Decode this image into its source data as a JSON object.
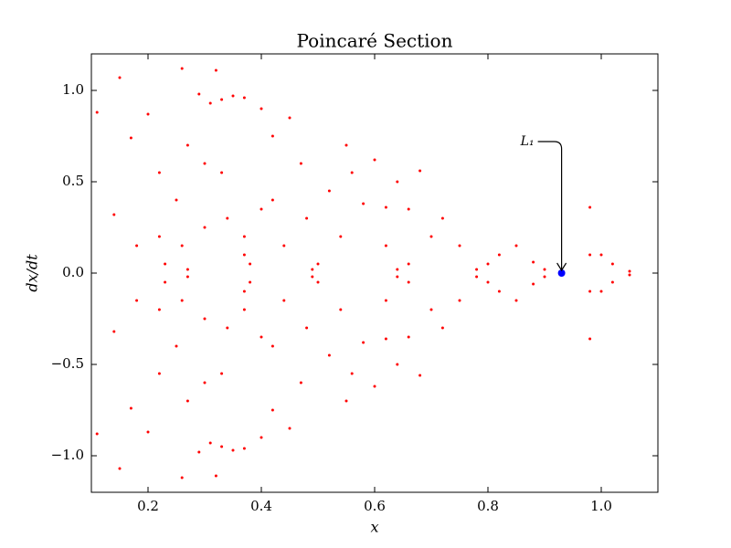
{
  "chart_data": {
    "type": "scatter",
    "title": "Poincaré Section",
    "xlabel": "x",
    "ylabel": "dx/dt",
    "xlim": [
      0.1,
      1.1
    ],
    "ylim": [
      -1.2,
      1.2
    ],
    "xticks": [
      0.2,
      0.4,
      0.6,
      0.8,
      {
        "value": 1.0,
        "label": "1.0"
      }
    ],
    "yticks": [
      {
        "value": -1.0,
        "label": "−1.0"
      },
      {
        "value": -0.5,
        "label": "−0.5"
      },
      {
        "value": 0.0,
        "label": "0.0"
      },
      {
        "value": 0.5,
        "label": "0.5"
      },
      {
        "value": 1.0,
        "label": "1.0"
      }
    ],
    "grid": false,
    "series": [
      {
        "color": "#ff0000",
        "x": [
          0.11,
          0.15,
          0.17,
          0.14,
          0.2,
          0.22,
          0.22,
          0.23,
          0.18,
          0.26,
          0.27,
          0.25,
          0.29,
          0.31,
          0.33,
          0.35,
          0.32,
          0.37,
          0.4,
          0.3,
          0.33,
          0.34,
          0.37,
          0.37,
          0.38,
          0.4,
          0.42,
          0.42,
          0.45,
          0.47,
          0.48,
          0.49,
          0.5,
          0.52,
          0.55,
          0.56,
          0.58,
          0.62,
          0.66,
          0.6,
          0.64,
          0.68,
          0.62,
          0.64,
          0.66,
          0.7,
          0.72,
          0.75,
          0.78,
          0.8,
          0.82,
          0.85,
          0.88,
          0.9,
          0.98,
          0.98,
          1.0,
          1.02,
          1.05,
          0.54,
          0.44,
          0.3,
          0.26,
          0.27,
          0.11,
          0.15,
          0.17,
          0.14,
          0.2,
          0.22,
          0.22,
          0.23,
          0.18,
          0.26,
          0.27,
          0.25,
          0.29,
          0.31,
          0.33,
          0.35,
          0.32,
          0.37,
          0.4,
          0.3,
          0.33,
          0.34,
          0.37,
          0.37,
          0.38,
          0.4,
          0.42,
          0.42,
          0.45,
          0.47,
          0.48,
          0.49,
          0.5,
          0.52,
          0.55,
          0.56,
          0.58,
          0.62,
          0.66,
          0.6,
          0.64,
          0.68,
          0.62,
          0.64,
          0.66,
          0.7,
          0.72,
          0.75,
          0.78,
          0.8,
          0.82,
          0.85,
          0.88,
          0.9,
          0.98,
          0.98,
          1.0,
          1.02,
          1.05,
          0.54,
          0.44,
          0.3,
          0.26,
          0.27
        ],
        "y": [
          0.88,
          1.07,
          0.74,
          0.32,
          0.87,
          0.55,
          0.2,
          0.05,
          0.15,
          1.12,
          0.7,
          0.4,
          0.98,
          0.93,
          0.95,
          0.97,
          1.11,
          0.96,
          0.9,
          0.6,
          0.55,
          0.3,
          0.1,
          0.2,
          0.05,
          0.35,
          0.4,
          0.75,
          0.85,
          0.6,
          0.3,
          0.02,
          0.05,
          0.45,
          0.7,
          0.55,
          0.38,
          0.36,
          0.35,
          0.62,
          0.5,
          0.56,
          0.15,
          0.02,
          0.05,
          0.2,
          0.3,
          0.15,
          0.02,
          0.05,
          0.1,
          0.15,
          0.06,
          0.02,
          0.36,
          0.1,
          0.1,
          0.05,
          0.01,
          0.2,
          0.15,
          0.25,
          0.15,
          0.02,
          -0.88,
          -1.07,
          -0.74,
          -0.32,
          -0.87,
          -0.55,
          -0.2,
          -0.05,
          -0.15,
          -1.12,
          -0.7,
          -0.4,
          -0.98,
          -0.93,
          -0.95,
          -0.97,
          -1.11,
          -0.96,
          -0.9,
          -0.6,
          -0.55,
          -0.3,
          -0.1,
          -0.2,
          -0.05,
          -0.35,
          -0.4,
          -0.75,
          -0.85,
          -0.6,
          -0.3,
          -0.02,
          -0.05,
          -0.45,
          -0.7,
          -0.55,
          -0.38,
          -0.36,
          -0.35,
          -0.62,
          -0.5,
          -0.56,
          -0.15,
          -0.02,
          -0.05,
          -0.2,
          -0.3,
          -0.15,
          -0.02,
          -0.05,
          -0.1,
          -0.15,
          -0.06,
          -0.02,
          -0.36,
          -0.1,
          -0.1,
          -0.05,
          -0.01,
          -0.2,
          -0.15,
          -0.25,
          -0.15,
          -0.02
        ]
      },
      {
        "color": "#0000ff",
        "x": [
          0.93
        ],
        "y": [
          0.0
        ]
      }
    ],
    "annotations": [
      {
        "text": "L₁",
        "x": 0.93,
        "y": 0.0
      }
    ]
  }
}
